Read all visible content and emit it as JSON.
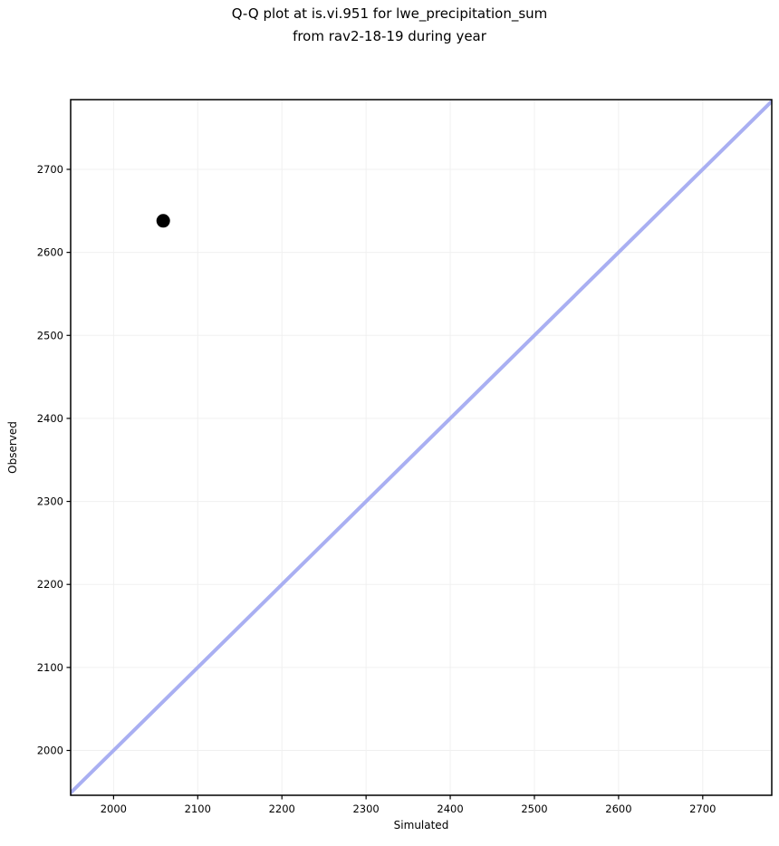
{
  "chart_data": {
    "type": "scatter",
    "title": "Q-Q plot at is.vi.951 for lwe_precipitation_sum from rav2-18-19 during year",
    "title_lines": [
      "Q-Q plot at is.vi.951 for lwe_precipitation_sum",
      "from rav2-18-19 during year"
    ],
    "xlabel": "Simulated",
    "ylabel": "Observed",
    "xlim": [
      1949,
      2782
    ],
    "ylim": [
      1946,
      2784
    ],
    "xticks": [
      2000,
      2100,
      2200,
      2300,
      2400,
      2500,
      2600,
      2700
    ],
    "yticks": [
      2000,
      2100,
      2200,
      2300,
      2400,
      2500,
      2600,
      2700
    ],
    "grid": true,
    "legend": false,
    "points": [
      {
        "x": 2059,
        "y": 2638
      }
    ],
    "reference_line": {
      "kind": "identity",
      "from": 1900,
      "to": 2800
    },
    "colors": {
      "point": "#000000",
      "identity_line": "#a9aff2",
      "grid": "#f0f0f0",
      "frame": "#000000",
      "tick": "#000000",
      "text": "#000000",
      "background": "#ffffff"
    },
    "style": {
      "point_radius": 7.5,
      "identity_line_width": 4,
      "frame_width": 1.5,
      "grid_width": 1,
      "tick_length": 4.5,
      "tick_width": 1.2,
      "tick_font_size": 11.5
    }
  }
}
